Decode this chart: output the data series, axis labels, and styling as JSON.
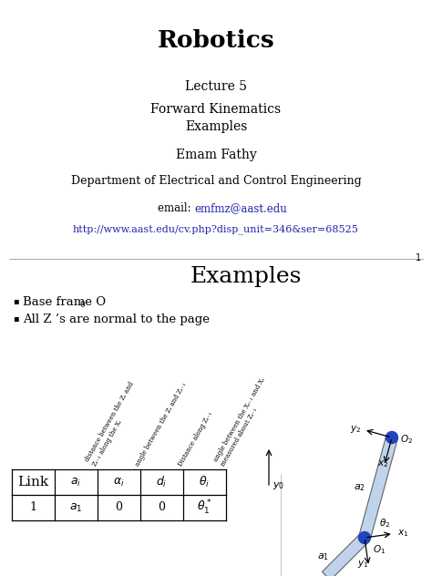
{
  "title": "Robotics",
  "lecture": "Lecture 5",
  "subtitle": "Forward Kinematics\nExamples",
  "author": "Emam Fathy",
  "department": "Department of Electrical and Control Engineering",
  "email_label": "email: ",
  "email": "emfmz@aast.edu",
  "url": "http://www.aast.edu/cv.php?disp_unit=346&ser=68525",
  "page_number": "1",
  "section_title": "Examples",
  "bullet1_text": "Base frame O",
  "bullet1_sub": "0",
  "bullet2": "All Z ’s are normal to the page",
  "header_labels": [
    "distance between the Zᵢ and\nZᵢ₋₁ along the Xᵢ",
    "angle between the Zᵢ and Zᵢ₋₁",
    "Distance along Zᵢ₋₁",
    "angle between the Xᵢ₋₁ and Xᵢ\nmeasured about Zᵢ₋₁"
  ],
  "table_rows": [
    [
      "Link",
      "$a_i$",
      "$\\alpha_i$",
      "$d_i$",
      "$\\theta_i$"
    ],
    [
      "1",
      "$a_1$",
      "0",
      "0",
      "$\\theta_1^*$"
    ]
  ],
  "bg_color": "#ffffff",
  "link_color": "#2222aa",
  "text_color": "#000000",
  "table_border_color": "#000000",
  "arm_color": "#b8d0e8",
  "arm_edge_color": "#555555",
  "joint_color": "#2244bb",
  "divider_color": "#999999"
}
